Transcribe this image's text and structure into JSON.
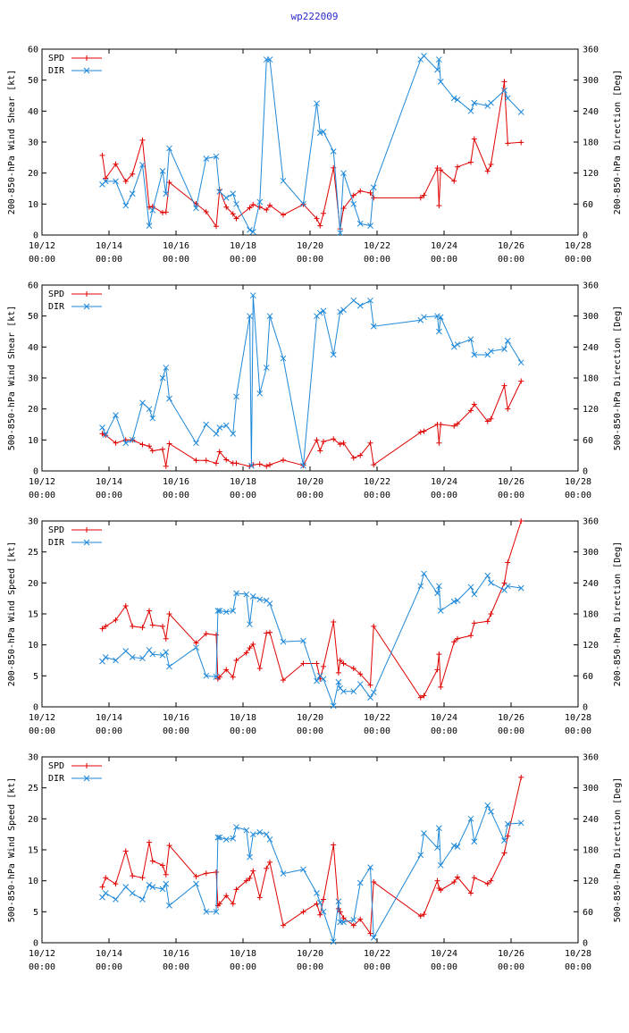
{
  "title": "wp222009",
  "colors": {
    "spd": "#e00000",
    "dir": "#1e88d8",
    "axis": "#000000"
  },
  "legend": {
    "spd": "SPD",
    "dir": "DIR"
  },
  "x_ticks": [
    {
      "day": 12,
      "date": "10/12",
      "time": "00:00"
    },
    {
      "day": 14,
      "date": "10/14",
      "time": "00:00"
    },
    {
      "day": 16,
      "date": "10/16",
      "time": "00:00"
    },
    {
      "day": 18,
      "date": "10/18",
      "time": "00:00"
    },
    {
      "day": 20,
      "date": "10/20",
      "time": "00:00"
    },
    {
      "day": 22,
      "date": "10/22",
      "time": "00:00"
    },
    {
      "day": 24,
      "date": "10/24",
      "time": "00:00"
    },
    {
      "day": 26,
      "date": "10/26",
      "time": "00:00"
    },
    {
      "day": 28,
      "date": "10/28",
      "time": "00:00"
    }
  ],
  "chart_data": [
    {
      "type": "line",
      "ylabel_left": "200-850-hPa Wind Shear [kt]",
      "ylabel_right": "200-850-hPa Direction [Deg]",
      "xlim": [
        12,
        28
      ],
      "ylim_left": [
        0,
        60
      ],
      "ylim_right": [
        0,
        360
      ],
      "yticks_left": [
        0,
        10,
        20,
        30,
        40,
        50,
        60
      ],
      "yticks_right": [
        0,
        60,
        120,
        180,
        240,
        300,
        360
      ],
      "series": [
        {
          "name": "SPD",
          "axis": "left",
          "x": [
            13.8,
            13.9,
            14.2,
            14.5,
            14.7,
            15.0,
            15.2,
            15.3,
            15.6,
            15.7,
            15.8,
            16.6,
            16.9,
            17.2,
            17.3,
            17.5,
            17.7,
            17.8,
            18.2,
            18.3,
            18.5,
            18.7,
            18.8,
            19.2,
            19.8,
            20.2,
            20.3,
            20.4,
            20.7,
            20.9,
            21.0,
            21.3,
            21.5,
            21.8,
            21.9,
            23.3,
            23.4,
            23.8,
            23.85,
            23.9,
            24.3,
            24.4,
            24.8,
            24.9,
            25.3,
            25.4,
            25.8,
            25.9,
            26.3
          ],
          "y": [
            25.7,
            18.3,
            22.9,
            17.3,
            19.7,
            30.6,
            9.0,
            9.2,
            7.2,
            7.4,
            17.0,
            10.1,
            7.5,
            2.8,
            14.6,
            9.0,
            6.8,
            5.3,
            8.8,
            9.8,
            9.0,
            8.1,
            9.6,
            6.5,
            9.9,
            5.3,
            3.0,
            7.0,
            21.7,
            2.0,
            8.6,
            12.8,
            14.2,
            13.6,
            12.0,
            12.0,
            12.8,
            21.6,
            9.5,
            21.0,
            17.4,
            22.0,
            23.5,
            31.0,
            20.6,
            22.8,
            49.5,
            29.6,
            29.9
          ]
        },
        {
          "name": "DIR",
          "axis": "right",
          "x": [
            13.8,
            13.9,
            14.2,
            14.5,
            14.7,
            15.0,
            15.2,
            15.3,
            15.6,
            15.7,
            15.8,
            16.6,
            16.9,
            17.2,
            17.3,
            17.5,
            17.7,
            17.8,
            18.2,
            18.3,
            18.5,
            18.7,
            18.8,
            19.2,
            19.8,
            20.2,
            20.3,
            20.4,
            20.7,
            20.9,
            21.0,
            21.3,
            21.5,
            21.8,
            21.9,
            23.3,
            23.4,
            23.8,
            23.85,
            23.9,
            24.3,
            24.4,
            24.8,
            24.9,
            25.3,
            25.4,
            25.8,
            25.9,
            26.3
          ],
          "y": [
            98,
            104,
            104,
            57,
            80,
            136,
            18,
            48,
            124,
            80,
            168,
            52,
            148,
            152,
            84,
            72,
            80,
            60,
            10,
            6,
            64,
            340,
            340,
            105,
            60,
            255,
            198,
            200,
            162,
            4,
            120,
            60,
            22,
            18,
            92,
            340,
            347,
            320,
            340,
            297,
            265,
            262,
            240,
            256,
            250,
            256,
            280,
            265,
            238
          ]
        }
      ]
    },
    {
      "type": "line",
      "ylabel_left": "500-850-hPa Wind Shear [kt]",
      "ylabel_right": "500-850-hPa Direction [Deg]",
      "xlim": [
        12,
        28
      ],
      "ylim_left": [
        0,
        60
      ],
      "ylim_right": [
        0,
        360
      ],
      "yticks_left": [
        0,
        10,
        20,
        30,
        40,
        50,
        60
      ],
      "yticks_right": [
        0,
        60,
        120,
        180,
        240,
        300,
        360
      ],
      "series": [
        {
          "name": "SPD",
          "axis": "left",
          "x": [
            13.8,
            13.9,
            14.2,
            14.5,
            14.7,
            15.0,
            15.2,
            15.3,
            15.6,
            15.7,
            15.8,
            16.6,
            16.9,
            17.2,
            17.3,
            17.5,
            17.7,
            17.8,
            18.2,
            18.3,
            18.5,
            18.7,
            18.8,
            19.2,
            19.8,
            20.2,
            20.3,
            20.4,
            20.7,
            20.9,
            21.0,
            21.3,
            21.5,
            21.8,
            21.9,
            23.3,
            23.4,
            23.8,
            23.85,
            23.9,
            24.3,
            24.4,
            24.8,
            24.9,
            25.3,
            25.4,
            25.8,
            25.9,
            26.3
          ],
          "y": [
            12,
            11.5,
            9.0,
            10.0,
            10.0,
            8.5,
            8.0,
            6.5,
            7.0,
            1.5,
            8.8,
            3.4,
            3.4,
            2.5,
            6.2,
            3.6,
            2.5,
            2.5,
            1.5,
            2.0,
            2.2,
            1.5,
            2.0,
            3.5,
            1.8,
            10.0,
            6.5,
            9.5,
            10.3,
            8.6,
            9.0,
            4.2,
            5.0,
            9.0,
            2.0,
            12.5,
            12.8,
            15.0,
            9.0,
            15.0,
            14.5,
            15.2,
            19.5,
            21.5,
            16.0,
            16.8,
            27.5,
            20.0,
            29.0
          ]
        },
        {
          "name": "DIR",
          "axis": "right",
          "x": [
            13.8,
            13.9,
            14.2,
            14.5,
            14.7,
            15.0,
            15.2,
            15.3,
            15.6,
            15.7,
            15.8,
            16.6,
            16.9,
            17.2,
            17.3,
            17.5,
            17.7,
            17.8,
            18.2,
            18.25,
            18.3,
            18.5,
            18.7,
            18.8,
            19.2,
            19.8,
            20.2,
            20.3,
            20.4,
            20.7,
            20.9,
            21.0,
            21.3,
            21.5,
            21.8,
            21.9,
            23.3,
            23.4,
            23.8,
            23.85,
            23.9,
            24.3,
            24.4,
            24.8,
            24.9,
            25.3,
            25.4,
            25.8,
            25.9,
            26.3
          ],
          "y": [
            84,
            70,
            108,
            54,
            60,
            132,
            120,
            102,
            180,
            200,
            140,
            54,
            90,
            72,
            84,
            88,
            72,
            144,
            300,
            10,
            340,
            150,
            200,
            300,
            218,
            10,
            300,
            306,
            310,
            225,
            308,
            312,
            330,
            320,
            330,
            280,
            292,
            298,
            300,
            270,
            298,
            240,
            245,
            255,
            225,
            225,
            232,
            236,
            252,
            210
          ]
        }
      ]
    },
    {
      "type": "line",
      "ylabel_left": "200-850-hPa Wind Speed [kt]",
      "ylabel_right": "200-850-hPa Direction [Deg]",
      "xlim": [
        12,
        28
      ],
      "ylim_left": [
        0,
        30
      ],
      "ylim_right": [
        0,
        360
      ],
      "yticks_left": [
        0,
        5,
        10,
        15,
        20,
        25,
        30
      ],
      "yticks_right": [
        0,
        60,
        120,
        180,
        240,
        300,
        360
      ],
      "series": [
        {
          "name": "SPD",
          "axis": "left",
          "x": [
            13.8,
            13.9,
            14.2,
            14.5,
            14.7,
            15.0,
            15.2,
            15.3,
            15.6,
            15.7,
            15.8,
            16.6,
            16.9,
            17.2,
            17.25,
            17.3,
            17.5,
            17.7,
            17.8,
            18.1,
            18.2,
            18.3,
            18.5,
            18.7,
            18.8,
            19.2,
            19.8,
            20.2,
            20.3,
            20.4,
            20.7,
            20.85,
            20.9,
            21.0,
            21.3,
            21.5,
            21.8,
            21.9,
            23.3,
            23.4,
            23.8,
            23.85,
            23.9,
            24.3,
            24.4,
            24.8,
            24.9,
            25.3,
            25.4,
            25.8,
            25.9,
            26.3
          ],
          "y": [
            12.6,
            13.0,
            14.0,
            16.3,
            13.0,
            12.8,
            15.5,
            13.2,
            13.0,
            11.0,
            15.0,
            10.3,
            11.8,
            11.6,
            4.5,
            4.8,
            6.0,
            4.8,
            7.5,
            8.7,
            9.5,
            10.1,
            6.2,
            11.9,
            12.0,
            4.3,
            7.0,
            7.0,
            4.5,
            6.5,
            13.7,
            5.5,
            7.5,
            7.0,
            6.2,
            5.3,
            3.5,
            13.0,
            1.5,
            1.8,
            6.0,
            8.5,
            3.2,
            10.5,
            11.0,
            11.5,
            13.5,
            13.8,
            15.0,
            20.0,
            23.3,
            30.0
          ]
        },
        {
          "name": "DIR",
          "axis": "right",
          "x": [
            13.8,
            13.9,
            14.2,
            14.5,
            14.7,
            15.0,
            15.2,
            15.3,
            15.6,
            15.7,
            15.8,
            16.6,
            16.9,
            17.2,
            17.25,
            17.3,
            17.5,
            17.7,
            17.8,
            18.1,
            18.2,
            18.3,
            18.5,
            18.7,
            18.8,
            19.2,
            19.8,
            20.2,
            20.3,
            20.4,
            20.7,
            20.85,
            20.9,
            21.0,
            21.3,
            21.5,
            21.8,
            21.9,
            23.3,
            23.4,
            23.8,
            23.85,
            23.9,
            24.3,
            24.4,
            24.8,
            24.9,
            25.3,
            25.4,
            25.8,
            25.9,
            26.3
          ],
          "y": [
            88,
            96,
            90,
            108,
            96,
            94,
            110,
            102,
            100,
            106,
            78,
            115,
            60,
            58,
            186,
            186,
            184,
            186,
            220,
            218,
            160,
            214,
            208,
            206,
            200,
            126,
            128,
            50,
            60,
            54,
            2,
            48,
            36,
            30,
            30,
            44,
            18,
            28,
            234,
            258,
            220,
            234,
            186,
            204,
            206,
            232,
            218,
            254,
            240,
            226,
            234,
            230
          ]
        }
      ]
    },
    {
      "type": "line",
      "ylabel_left": "500-850-hPa Wind Speed [kt]",
      "ylabel_right": "500-850-hPa Direction [Deg]",
      "xlim": [
        12,
        28
      ],
      "ylim_left": [
        0,
        30
      ],
      "ylim_right": [
        0,
        360
      ],
      "yticks_left": [
        0,
        5,
        10,
        15,
        20,
        25,
        30
      ],
      "yticks_right": [
        0,
        60,
        120,
        180,
        240,
        300,
        360
      ],
      "series": [
        {
          "name": "SPD",
          "axis": "left",
          "x": [
            13.8,
            13.9,
            14.2,
            14.5,
            14.7,
            15.0,
            15.2,
            15.3,
            15.6,
            15.7,
            15.8,
            16.6,
            16.9,
            17.2,
            17.25,
            17.3,
            17.5,
            17.7,
            17.8,
            18.1,
            18.2,
            18.3,
            18.5,
            18.7,
            18.8,
            19.2,
            19.8,
            20.2,
            20.3,
            20.4,
            20.7,
            20.85,
            20.9,
            21.0,
            21.3,
            21.5,
            21.8,
            21.9,
            23.3,
            23.4,
            23.8,
            23.85,
            23.9,
            24.3,
            24.4,
            24.8,
            24.9,
            25.3,
            25.4,
            25.8,
            25.9,
            26.3
          ],
          "y": [
            9.0,
            10.5,
            9.5,
            14.8,
            10.8,
            10.5,
            16.2,
            13.2,
            12.5,
            11.0,
            15.7,
            10.7,
            11.2,
            11.4,
            6.0,
            6.3,
            7.6,
            6.3,
            8.6,
            10.0,
            10.4,
            11.6,
            7.3,
            12.0,
            13.0,
            2.8,
            5.0,
            6.3,
            4.5,
            7.0,
            15.8,
            5.5,
            5.0,
            4.0,
            2.8,
            3.8,
            1.5,
            9.8,
            4.3,
            4.6,
            10.0,
            8.8,
            8.5,
            9.8,
            10.6,
            8.0,
            10.5,
            9.5,
            10.0,
            14.5,
            17.2,
            26.7
          ]
        },
        {
          "name": "DIR",
          "axis": "right",
          "x": [
            13.8,
            13.9,
            14.2,
            14.5,
            14.7,
            15.0,
            15.2,
            15.3,
            15.6,
            15.7,
            15.8,
            16.6,
            16.9,
            17.2,
            17.25,
            17.3,
            17.5,
            17.7,
            17.8,
            18.1,
            18.2,
            18.3,
            18.5,
            18.7,
            18.8,
            19.2,
            19.8,
            20.2,
            20.3,
            20.4,
            20.7,
            20.85,
            20.9,
            21.0,
            21.3,
            21.5,
            21.8,
            21.9,
            23.3,
            23.4,
            23.8,
            23.85,
            23.9,
            24.3,
            24.4,
            24.8,
            24.9,
            25.3,
            25.4,
            25.8,
            25.9,
            26.3
          ],
          "y": [
            88,
            96,
            84,
            108,
            96,
            84,
            112,
            108,
            104,
            114,
            72,
            114,
            60,
            60,
            204,
            204,
            200,
            202,
            224,
            218,
            166,
            210,
            214,
            210,
            200,
            134,
            142,
            96,
            78,
            60,
            2,
            80,
            40,
            40,
            44,
            116,
            146,
            10,
            170,
            212,
            184,
            222,
            150,
            188,
            186,
            240,
            196,
            266,
            254,
            198,
            230,
            232
          ]
        }
      ]
    }
  ]
}
